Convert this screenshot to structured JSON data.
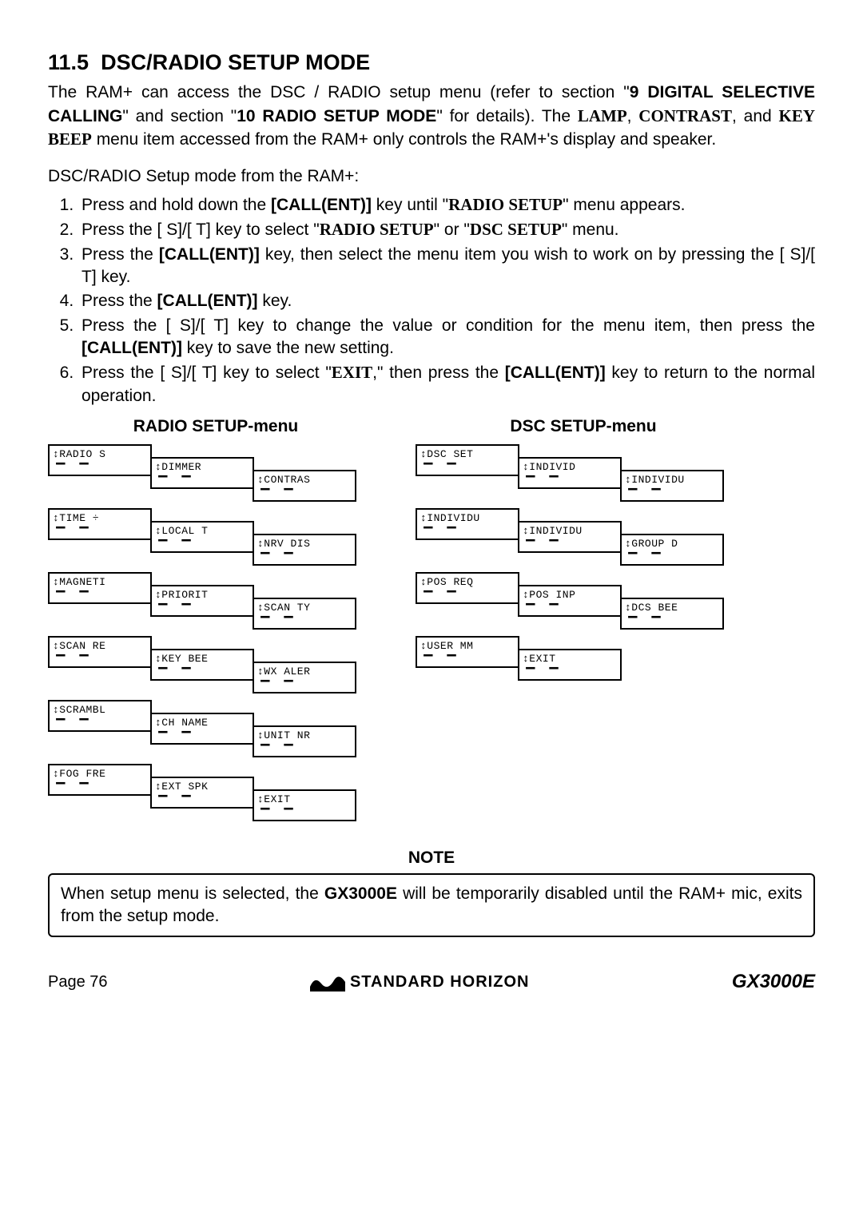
{
  "section": {
    "number": "11.5",
    "title": "DSC/RADIO SETUP MODE"
  },
  "intro": {
    "text_pre": "The RAM+ can access the DSC / RADIO setup menu (refer to section \"",
    "ref1": "9  DIGITAL SELECTIVE CALLING",
    "mid1": "\" and section \"",
    "ref2": "10 RADIO SETUP MODE",
    "mid2": "\" for details). The ",
    "lamp": "LAMP",
    "comma1": ", ",
    "contrast": "CONTRAST",
    "comma2": ", and ",
    "keybeep": "KEY BEEP",
    "tail": " menu item accessed from the RAM+ only controls the RAM+'s display and speaker."
  },
  "subhead": "DSC/RADIO Setup mode from the RAM+:",
  "steps": [
    {
      "pre": "Press and hold down the ",
      "k1": "[CALL(ENT)]",
      "mid": " key until \"",
      "m1": "RADIO SETUP",
      "tail": "\" menu appears."
    },
    {
      "pre": "Press the [ S]/[ T] key to select \"",
      "m1": "RADIO SETUP",
      "mid": "\" or \"",
      "m2": "DSC SETUP",
      "tail": "\" menu."
    },
    {
      "pre": "Press the ",
      "k1": "[CALL(ENT)]",
      "tail": " key, then select the menu item you wish to work on by pressing the [ S]/[ T] key."
    },
    {
      "pre": "Press the ",
      "k1": "[CALL(ENT)]",
      "tail": " key."
    },
    {
      "pre": "Press the [ S]/[ T] key to change the value or condition for the menu item, then press the ",
      "k1": "[CALL(ENT)]",
      "tail": " key to save the new setting."
    },
    {
      "pre": "Press the [ S]/[ T] key to select \"",
      "m1": "EXIT",
      "mid": ",\" then press the ",
      "k1": "[CALL(ENT)]",
      "tail": " key to return to the normal operation."
    }
  ],
  "radio_menu": {
    "title": "RADIO SETUP-menu",
    "rows": [
      [
        "RADIO S",
        "DIMMER",
        "CONTRAS"
      ],
      [
        "TIME ÷",
        "LOCAL T",
        "NRV DIS"
      ],
      [
        "MAGNETI",
        "PRIORIT",
        "SCAN TY"
      ],
      [
        "SCAN RE",
        "KEY BEE",
        "WX ALER"
      ],
      [
        "SCRAMBL",
        "CH NAME",
        "UNIT NR"
      ],
      [
        "FOG FRE",
        "EXT SPK",
        "EXIT"
      ]
    ]
  },
  "dsc_menu": {
    "title": "DSC SETUP-menu",
    "rows": [
      [
        "DSC SET",
        "INDIVID",
        "INDIVIDU"
      ],
      [
        "INDIVIDU",
        "INDIVIDU",
        "GROUP D"
      ],
      [
        "POS REQ",
        "POS INP",
        "DCS BEE"
      ],
      [
        "USER MM",
        "EXIT",
        ""
      ]
    ]
  },
  "note": {
    "title": "NOTE",
    "pre": "When setup menu is selected, the ",
    "model": "GX3000E",
    "tail": " will be temporarily disabled until the RAM+ mic, exits from the setup mode."
  },
  "footer": {
    "page": "Page 76",
    "brand": "STANDARD HORIZON",
    "model": "GX3000E"
  }
}
